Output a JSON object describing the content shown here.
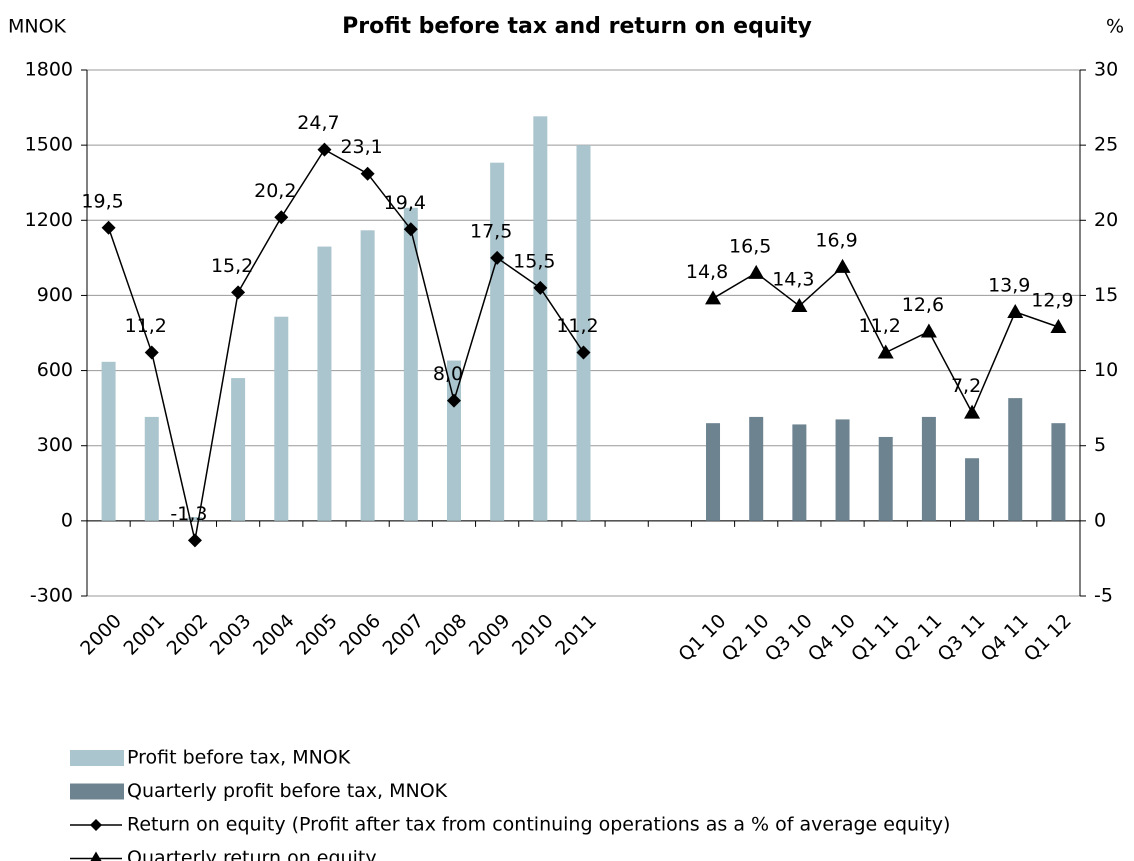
{
  "chart_data": {
    "type": "bar",
    "title": "Profit before tax and return on equity",
    "y_label": "MNOK",
    "y2_label": "%",
    "categories": [
      "2000",
      "2001",
      "2002",
      "2003",
      "2004",
      "2005",
      "2006",
      "2007",
      "2008",
      "2009",
      "2010",
      "2011",
      null,
      null,
      "Q1 10",
      "Q2 10",
      "Q3 10",
      "Q4 10",
      "Q1 11",
      "Q2 11",
      "Q3 11",
      "Q4 11",
      "Q1 12"
    ],
    "series": [
      {
        "name": "Profit before tax, MNOK",
        "type": "bar",
        "color": "#aac5cd",
        "values": [
          635,
          415,
          15,
          570,
          815,
          1095,
          1160,
          1250,
          640,
          1430,
          1615,
          1500,
          null,
          null,
          null,
          null,
          null,
          null,
          null,
          null,
          null,
          null,
          null
        ]
      },
      {
        "name": "Quarterly profit before tax, MNOK",
        "type": "bar",
        "color": "#6d8390",
        "values": [
          null,
          null,
          null,
          null,
          null,
          null,
          null,
          null,
          null,
          null,
          null,
          null,
          null,
          null,
          390,
          415,
          385,
          405,
          335,
          415,
          250,
          490,
          390
        ]
      },
      {
        "name": "Return on equity (Profit after tax from continuing operations as a % of average equity)",
        "type": "line",
        "marker": "diamond",
        "color": "#000000",
        "axis": "y2",
        "values": [
          19.5,
          11.2,
          -1.3,
          15.2,
          20.2,
          24.7,
          23.1,
          19.4,
          8.0,
          17.5,
          15.5,
          11.2,
          null,
          null,
          null,
          null,
          null,
          null,
          null,
          null,
          null,
          null,
          null
        ],
        "value_labels": [
          "19,5",
          "11,2",
          "-1,3",
          "15,2",
          "20,2",
          "24,7",
          "23,1",
          "19,4",
          "8,0",
          "17,5",
          "15,5",
          "11,2",
          null,
          null,
          null,
          null,
          null,
          null,
          null,
          null,
          null,
          null,
          null
        ]
      },
      {
        "name": "Quarterly return on equity",
        "type": "line",
        "marker": "triangle",
        "color": "#000000",
        "axis": "y2",
        "values": [
          null,
          null,
          null,
          null,
          null,
          null,
          null,
          null,
          null,
          null,
          null,
          null,
          null,
          null,
          14.8,
          16.5,
          14.3,
          16.9,
          11.2,
          12.6,
          7.2,
          13.9,
          12.9
        ],
        "value_labels": [
          null,
          null,
          null,
          null,
          null,
          null,
          null,
          null,
          null,
          null,
          null,
          null,
          null,
          null,
          "14,8",
          "16,5",
          "14,3",
          "16,9",
          "11,2",
          "12,6",
          "7,2",
          "13,9",
          "12,9"
        ]
      }
    ],
    "ylim": [
      -300,
      1800
    ],
    "yticks": [
      -300,
      0,
      300,
      600,
      900,
      1200,
      1500,
      1800
    ],
    "y2lim": [
      -5,
      30
    ],
    "y2ticks": [
      -5,
      0,
      5,
      10,
      15,
      20,
      25,
      30
    ],
    "grid": true
  }
}
